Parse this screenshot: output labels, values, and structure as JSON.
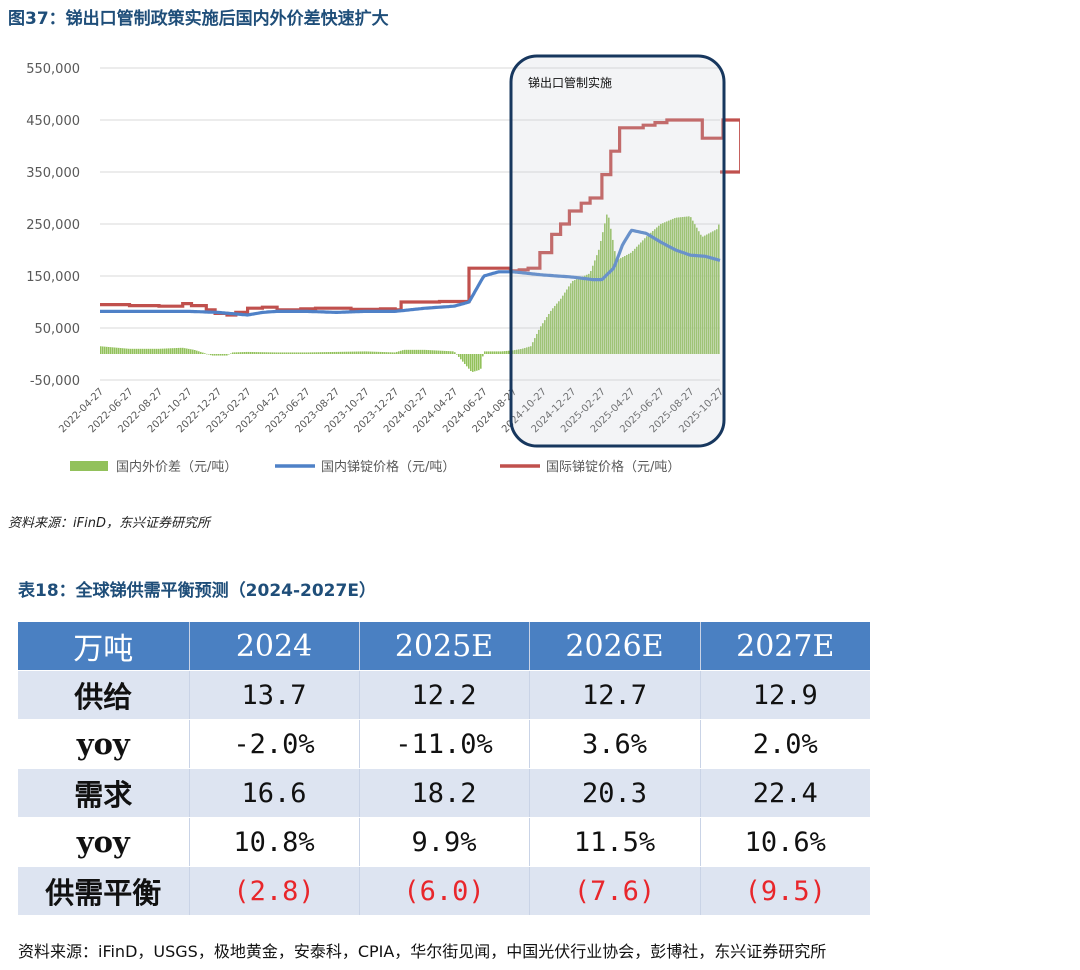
{
  "figure_title": "图37：锑出口管制政策实施后国内外价差快速扩大",
  "source1": "资料来源：iFinD，东兴证券研究所",
  "chart_data": {
    "type": "bar+line",
    "annotation": "锑出口管制实施",
    "yticks": [
      "550,000",
      "450,000",
      "350,000",
      "250,000",
      "150,000",
      "50,000",
      "-50,000"
    ],
    "ylim": [
      -50000,
      550000
    ],
    "xticks": [
      "2022-04-27",
      "2022-06-27",
      "2022-08-27",
      "2022-10-27",
      "2022-12-27",
      "2023-02-27",
      "2023-04-27",
      "2023-06-27",
      "2023-08-27",
      "2023-10-27",
      "2023-12-27",
      "2024-02-27",
      "2024-04-27",
      "2024-06-27",
      "2024-08-27",
      "2024-10-27",
      "2024-12-27",
      "2025-02-27",
      "2025-04-27",
      "2025-06-27",
      "2025-08-27",
      "2025-10-27"
    ],
    "legend": [
      "国内外价差（元/吨）",
      "国内锑锭价格（元/吨）",
      "国际锑锭价格（元/吨）"
    ],
    "colors": {
      "spread": "#92c15b",
      "domestic": "#4f81c7",
      "international": "#c0504d"
    },
    "domestic_anchors": [
      [
        0,
        82000
      ],
      [
        3,
        82000
      ],
      [
        4,
        80000
      ],
      [
        5,
        75000
      ],
      [
        5.5,
        80000
      ],
      [
        6,
        82000
      ],
      [
        7,
        82000
      ],
      [
        8,
        80000
      ],
      [
        9,
        82000
      ],
      [
        10,
        82000
      ],
      [
        11,
        88000
      ],
      [
        12,
        92000
      ],
      [
        12.5,
        100000
      ],
      [
        13,
        150000
      ],
      [
        13.5,
        158000
      ],
      [
        14,
        158000
      ],
      [
        15,
        152000
      ],
      [
        16,
        148000
      ],
      [
        16.7,
        143000
      ],
      [
        17,
        143000
      ],
      [
        17.4,
        165000
      ],
      [
        17.7,
        210000
      ],
      [
        18,
        238000
      ],
      [
        18.5,
        232000
      ],
      [
        19,
        215000
      ],
      [
        19.5,
        200000
      ],
      [
        20,
        190000
      ],
      [
        20.5,
        188000
      ],
      [
        21,
        180000
      ],
      [
        21.5,
        165000
      ],
      [
        21.9,
        148000
      ]
    ],
    "international_steps": [
      [
        0,
        95000
      ],
      [
        1,
        93000
      ],
      [
        2,
        92000
      ],
      [
        2.8,
        97000
      ],
      [
        3.1,
        93000
      ],
      [
        3.6,
        85000
      ],
      [
        3.9,
        78000
      ],
      [
        4.3,
        75000
      ],
      [
        4.6,
        80000
      ],
      [
        5,
        88000
      ],
      [
        5.5,
        90000
      ],
      [
        6,
        85000
      ],
      [
        6.8,
        87000
      ],
      [
        7.3,
        88000
      ],
      [
        8.5,
        86000
      ],
      [
        9.5,
        87000
      ],
      [
        10,
        85000
      ],
      [
        10.2,
        100000
      ],
      [
        11.5,
        101000
      ],
      [
        12.2,
        101000
      ],
      [
        12.5,
        165000
      ],
      [
        13.2,
        165000
      ],
      [
        13.9,
        160000
      ],
      [
        14.2,
        162000
      ],
      [
        14.5,
        165000
      ],
      [
        14.9,
        195000
      ],
      [
        15.3,
        230000
      ],
      [
        15.6,
        250000
      ],
      [
        15.9,
        275000
      ],
      [
        16.3,
        290000
      ],
      [
        16.6,
        300000
      ],
      [
        17,
        345000
      ],
      [
        17.3,
        390000
      ],
      [
        17.6,
        435000
      ],
      [
        18,
        435000
      ],
      [
        18.4,
        440000
      ],
      [
        18.8,
        445000
      ],
      [
        19.2,
        450000
      ],
      [
        19.6,
        450000
      ],
      [
        20.2,
        450000
      ],
      [
        20.4,
        415000
      ],
      [
        20.9,
        415000
      ],
      [
        21.1,
        450000
      ],
      [
        21.5,
        450000
      ],
      [
        21.7,
        350000
      ],
      [
        22,
        350000
      ]
    ],
    "spread_anchors": [
      [
        0,
        15000
      ],
      [
        1,
        10000
      ],
      [
        2,
        10000
      ],
      [
        2.8,
        12000
      ],
      [
        3.2,
        8000
      ],
      [
        3.8,
        -3000
      ],
      [
        4.3,
        -3000
      ],
      [
        4.5,
        3000
      ],
      [
        5,
        4000
      ],
      [
        6,
        3000
      ],
      [
        7,
        3000
      ],
      [
        8,
        4000
      ],
      [
        9,
        5000
      ],
      [
        10,
        3000
      ],
      [
        10.3,
        8000
      ],
      [
        11,
        8000
      ],
      [
        12,
        5000
      ],
      [
        12.3,
        -15000
      ],
      [
        12.6,
        -35000
      ],
      [
        12.9,
        -30000
      ],
      [
        13,
        5000
      ],
      [
        13.6,
        5000
      ],
      [
        14,
        7000
      ],
      [
        14.3,
        10000
      ],
      [
        14.6,
        15000
      ],
      [
        14.9,
        50000
      ],
      [
        15.3,
        85000
      ],
      [
        15.6,
        105000
      ],
      [
        16,
        140000
      ],
      [
        16.6,
        155000
      ],
      [
        16.9,
        200000
      ],
      [
        17.2,
        275000
      ],
      [
        17.5,
        180000
      ],
      [
        18,
        195000
      ],
      [
        18.5,
        225000
      ],
      [
        19,
        250000
      ],
      [
        19.5,
        262000
      ],
      [
        20,
        265000
      ],
      [
        20.4,
        225000
      ],
      [
        20.9,
        240000
      ],
      [
        21.2,
        280000
      ],
      [
        21.6,
        295000
      ],
      [
        21.8,
        200000
      ],
      [
        22,
        200000
      ]
    ]
  },
  "table_title": "表18：全球锑供需平衡预测（2024-2027E）",
  "table": {
    "header": [
      "万吨",
      "2024",
      "2025E",
      "2026E",
      "2027E"
    ],
    "rows": [
      {
        "label": "供给",
        "values": [
          "13.7",
          "12.2",
          "12.7",
          "12.9"
        ],
        "style": "odd"
      },
      {
        "label": "yoy",
        "values": [
          "-2.0%",
          "-11.0%",
          "3.6%",
          "2.0%"
        ],
        "style": "even"
      },
      {
        "label": "需求",
        "values": [
          "16.6",
          "18.2",
          "20.3",
          "22.4"
        ],
        "style": "odd"
      },
      {
        "label": "yoy",
        "values": [
          "10.8%",
          "9.9%",
          "11.5%",
          "10.6%"
        ],
        "style": "even"
      },
      {
        "label": "供需平衡",
        "values": [
          "(2.8)",
          "(6.0)",
          "(7.6)",
          "(9.5)"
        ],
        "style": "odd",
        "negative": true
      }
    ]
  },
  "source2": "资料来源：iFinD，USGS，极地黄金，安泰科，CPIA，华尔街见闻，中国光伏行业协会，彭博社，东兴证券研究所"
}
